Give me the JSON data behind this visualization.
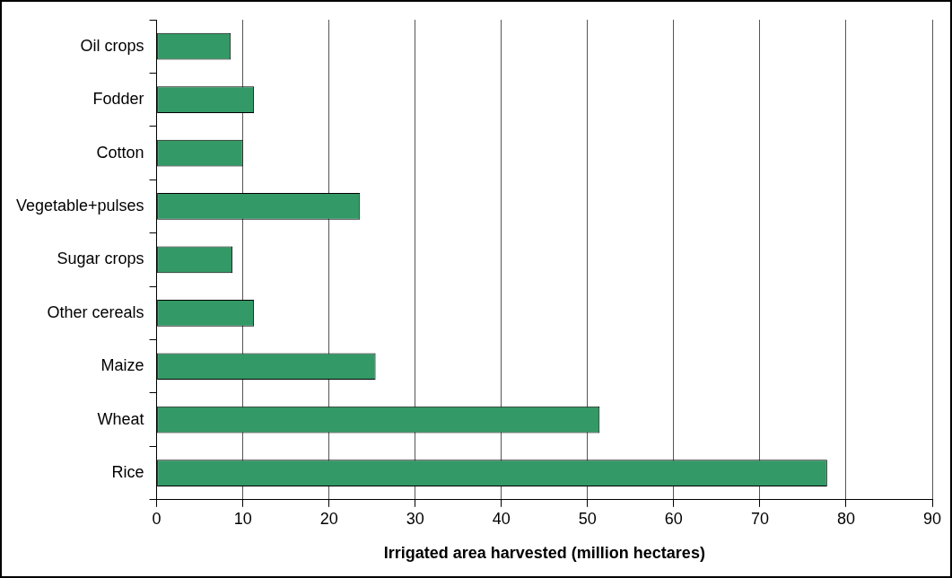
{
  "chart_data": {
    "type": "bar",
    "orientation": "horizontal",
    "xlabel": "Irrigated area harvested (million hectares)",
    "categories": [
      "Oil crops",
      "Fodder",
      "Cotton",
      "Vegetable+pulses",
      "Sugar crops",
      "Other cereals",
      "Maize",
      "Wheat",
      "Rice"
    ],
    "values": [
      8.6,
      11.3,
      10.0,
      23.6,
      8.8,
      11.3,
      25.4,
      51.4,
      77.8
    ],
    "color": "#339966",
    "xlim": [
      0,
      90
    ],
    "xticks": [
      0,
      10,
      20,
      30,
      40,
      50,
      60,
      70,
      80,
      90
    ],
    "grid": "x",
    "legend": false
  }
}
